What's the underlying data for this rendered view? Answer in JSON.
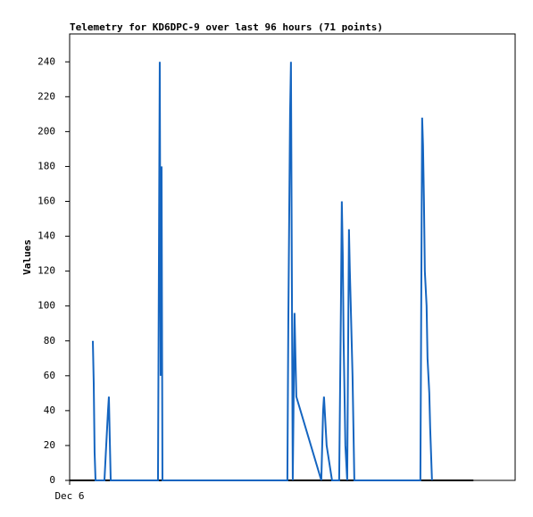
{
  "chart_data": {
    "type": "line",
    "title": "Telemetry for KD6DPC-9 over last 96 hours (71 points)",
    "y_label": "Values",
    "xlim": [
      0,
      96
    ],
    "xticks": [
      {
        "value": 0,
        "label": "Dec 6"
      }
    ],
    "ylim": [
      0,
      256
    ],
    "yticks": [
      0,
      20,
      40,
      60,
      80,
      100,
      120,
      140,
      160,
      180,
      200,
      220,
      240
    ],
    "series": [
      {
        "color": "#000000",
        "x": [
          0,
          87
        ],
        "values": [
          0,
          0
        ]
      },
      {
        "color": "#1565c0",
        "x": [
          5.0,
          5.19,
          5.38,
          5.58,
          7.5,
          7.88,
          8.27,
          8.46,
          8.65,
          8.85,
          19.04,
          19.23,
          19.42,
          19.62,
          19.81,
          20.0,
          46.92,
          47.12,
          47.31,
          47.5,
          47.69,
          47.88,
          48.08,
          48.46,
          48.65,
          48.85,
          54.23,
          54.62,
          54.81,
          55.38,
          56.54,
          58.08,
          58.46,
          58.65,
          58.85,
          59.04,
          59.42,
          59.81,
          60.19,
          60.38,
          60.58,
          60.96,
          61.35,
          75.58,
          75.77,
          75.96,
          76.15,
          76.35,
          76.54,
          76.92,
          77.12,
          77.5,
          77.69,
          78.08
        ],
        "values": [
          80,
          56,
          16,
          0,
          0,
          20,
          40,
          48,
          24,
          0,
          0,
          120,
          240,
          60,
          180,
          0,
          0,
          90,
          150,
          210,
          240,
          120,
          0,
          96,
          72,
          48,
          0,
          40,
          48,
          20,
          0,
          0,
          100,
          160,
          130,
          80,
          20,
          0,
          144,
          120,
          100,
          60,
          0,
          0,
          104,
          208,
          192,
          160,
          120,
          100,
          70,
          50,
          30,
          0
        ]
      }
    ]
  }
}
